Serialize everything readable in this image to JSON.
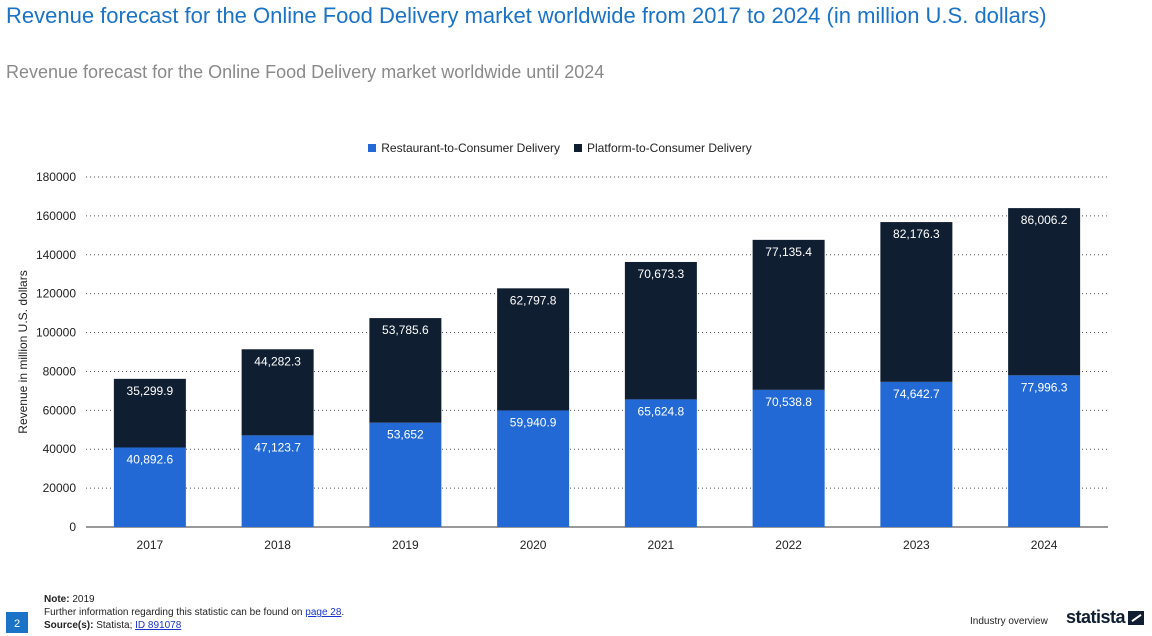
{
  "header": {
    "title": "Revenue forecast for the Online Food Delivery market worldwide from 2017 to 2024 (in million U.S. dollars)",
    "subtitle": "Revenue forecast for the Online Food Delivery market worldwide until 2024"
  },
  "chart_data": {
    "type": "bar",
    "stacked": true,
    "categories": [
      "2017",
      "2018",
      "2019",
      "2020",
      "2021",
      "2022",
      "2023",
      "2024"
    ],
    "series": [
      {
        "name": "Restaurant-to-Consumer Delivery",
        "color": "#2269d6",
        "values": [
          40892.6,
          47123.7,
          53652,
          59940.9,
          65624.8,
          70538.8,
          74642.7,
          77996.3
        ],
        "labels": [
          "40,892.6",
          "47,123.7",
          "53,652",
          "59,940.9",
          "65,624.8",
          "70,538.8",
          "74,642.7",
          "77,996.3"
        ]
      },
      {
        "name": "Platform-to-Consumer Delivery",
        "color": "#0f1e30",
        "values": [
          35299.9,
          44282.3,
          53785.6,
          62797.8,
          70673.3,
          77135.4,
          82176.3,
          86006.2
        ],
        "labels": [
          "35,299.9",
          "44,282.3",
          "53,785.6",
          "62,797.8",
          "70,673.3",
          "77,135.4",
          "82,176.3",
          "86,006.2"
        ]
      }
    ],
    "ylabel": "Revenue in million U.S. dollars",
    "ylim": [
      0,
      180000
    ],
    "yticks": [
      "0",
      "20000",
      "40000",
      "60000",
      "80000",
      "100000",
      "120000",
      "140000",
      "160000",
      "180000"
    ],
    "grid": true,
    "legend": "top-center"
  },
  "footer": {
    "page_number": "2",
    "note_label": "Note:",
    "note_value": "2019",
    "further_info": "Further information regarding this statistic can be found on",
    "further_link": "page 28",
    "source_label": "Source(s):",
    "source_value": "Statista;",
    "source_link": "ID 891078",
    "section": "Industry overview",
    "brand": "statista"
  }
}
